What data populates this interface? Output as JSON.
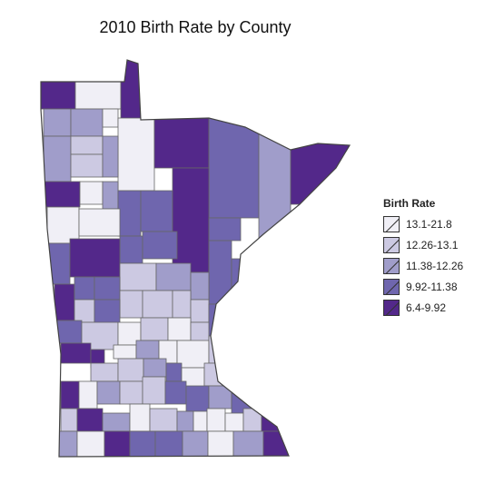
{
  "title": "2010 Birth Rate by County",
  "legend": {
    "title": "Birth Rate",
    "classes": [
      {
        "label": "13.1-21.8",
        "color": "#f0eff6"
      },
      {
        "label": "12.26-13.1",
        "color": "#ccc9e2"
      },
      {
        "label": "11.38-12.26",
        "color": "#a09dca"
      },
      {
        "label": "9.92-11.38",
        "color": "#6f66ae"
      },
      {
        "label": "6.4-9.92",
        "color": "#53288a"
      }
    ]
  }
}
